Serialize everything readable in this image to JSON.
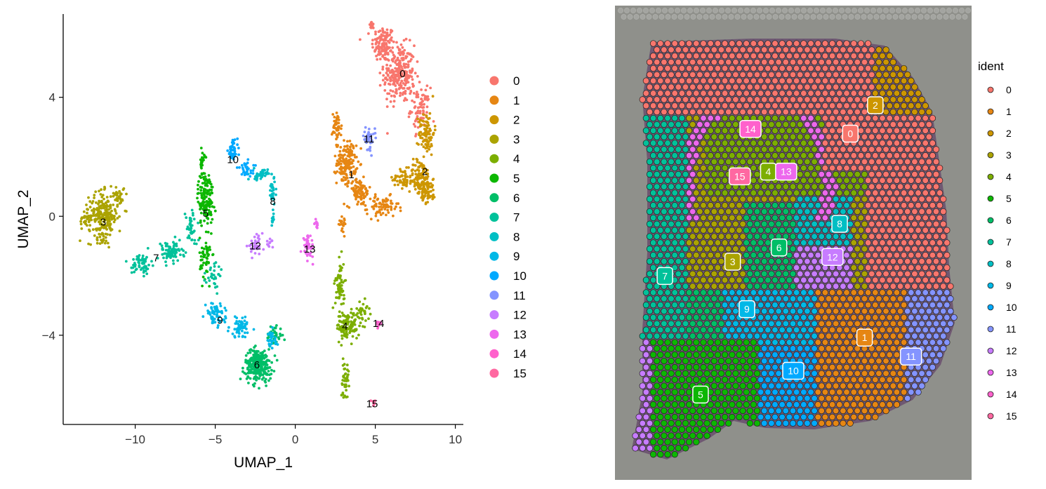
{
  "chart_data": [
    {
      "type": "scatter",
      "title": "",
      "xlabel": "UMAP_1",
      "ylabel": "UMAP_2",
      "xlim": [
        -14.5,
        10.5
      ],
      "ylim": [
        -7.0,
        6.8
      ],
      "x_ticks": [
        -10,
        -5,
        0,
        5,
        10
      ],
      "y_ticks": [
        -4,
        0,
        4
      ],
      "x_tick_labels": [
        "−10",
        "−5",
        "0",
        "5",
        "10"
      ],
      "y_tick_labels": [
        "−4",
        "0",
        "4"
      ],
      "grid": false,
      "legend_placement": "right",
      "legend_entries": [
        "0",
        "1",
        "2",
        "3",
        "4",
        "5",
        "6",
        "7",
        "8",
        "9",
        "10",
        "11",
        "12",
        "13",
        "14",
        "15"
      ],
      "series": [
        {
          "cluster": "0",
          "color": "#F8766D",
          "centroid": [
            6.5,
            4.8
          ],
          "label_pos": [
            6.7,
            4.8
          ]
        },
        {
          "cluster": "1",
          "color": "#E68613",
          "centroid": [
            3.4,
            1.6
          ],
          "label_pos": [
            3.5,
            1.4
          ]
        },
        {
          "cluster": "2",
          "color": "#CD9600",
          "centroid": [
            8.1,
            1.2
          ],
          "label_pos": [
            8.1,
            1.5
          ]
        },
        {
          "cluster": "3",
          "color": "#ABA300",
          "centroid": [
            -12.0,
            -0.2
          ],
          "label_pos": [
            -12.0,
            -0.2
          ]
        },
        {
          "cluster": "4",
          "color": "#7CAE00",
          "centroid": [
            3.2,
            -3.8
          ],
          "label_pos": [
            3.1,
            -3.7
          ]
        },
        {
          "cluster": "5",
          "color": "#0CB702",
          "centroid": [
            -5.6,
            0.2
          ],
          "label_pos": [
            -5.6,
            0.1
          ]
        },
        {
          "cluster": "6",
          "color": "#00BE67",
          "centroid": [
            -2.3,
            -4.9
          ],
          "label_pos": [
            -2.4,
            -5.0
          ]
        },
        {
          "cluster": "7",
          "color": "#00C19A",
          "centroid": [
            -8.8,
            -1.4
          ],
          "label_pos": [
            -8.7,
            -1.4
          ]
        },
        {
          "cluster": "8",
          "color": "#00BFC4",
          "centroid": [
            -1.5,
            0.5
          ],
          "label_pos": [
            -1.4,
            0.5
          ]
        },
        {
          "cluster": "9",
          "color": "#00B8E7",
          "centroid": [
            -4.6,
            -3.3
          ],
          "label_pos": [
            -4.7,
            -3.5
          ]
        },
        {
          "cluster": "10",
          "color": "#00A9FF",
          "centroid": [
            -3.8,
            2.0
          ],
          "label_pos": [
            -3.9,
            1.9
          ]
        },
        {
          "cluster": "11",
          "color": "#8494FF",
          "centroid": [
            4.6,
            2.6
          ],
          "label_pos": [
            4.6,
            2.6
          ]
        },
        {
          "cluster": "12",
          "color": "#C77CFF",
          "centroid": [
            -2.4,
            -1.0
          ],
          "label_pos": [
            -2.5,
            -1.0
          ]
        },
        {
          "cluster": "13",
          "color": "#ED68ED",
          "centroid": [
            0.9,
            -1.1
          ],
          "label_pos": [
            0.9,
            -1.1
          ]
        },
        {
          "cluster": "14",
          "color": "#FF61CC",
          "centroid": [
            5.1,
            -3.6
          ],
          "label_pos": [
            5.2,
            -3.6
          ]
        },
        {
          "cluster": "15",
          "color": "#FF68A1",
          "centroid": [
            4.8,
            -6.3
          ],
          "label_pos": [
            4.8,
            -6.3
          ]
        }
      ]
    },
    {
      "type": "scatter",
      "title": "",
      "legend_title": "ident",
      "legend_placement": "right",
      "legend_entries": [
        "0",
        "1",
        "2",
        "3",
        "4",
        "5",
        "6",
        "7",
        "8",
        "9",
        "10",
        "11",
        "12",
        "13",
        "14",
        "15"
      ],
      "spot_labels": [
        {
          "cluster": "0",
          "pos": [
            0.66,
            0.27
          ]
        },
        {
          "cluster": "1",
          "pos": [
            0.7,
            0.7
          ]
        },
        {
          "cluster": "2",
          "pos": [
            0.73,
            0.21
          ]
        },
        {
          "cluster": "3",
          "pos": [
            0.33,
            0.54
          ]
        },
        {
          "cluster": "4",
          "pos": [
            0.43,
            0.35
          ]
        },
        {
          "cluster": "5",
          "pos": [
            0.24,
            0.82
          ]
        },
        {
          "cluster": "6",
          "pos": [
            0.46,
            0.51
          ]
        },
        {
          "cluster": "7",
          "pos": [
            0.14,
            0.57
          ]
        },
        {
          "cluster": "8",
          "pos": [
            0.63,
            0.46
          ]
        },
        {
          "cluster": "9",
          "pos": [
            0.37,
            0.64
          ]
        },
        {
          "cluster": "10",
          "pos": [
            0.5,
            0.77
          ]
        },
        {
          "cluster": "11",
          "pos": [
            0.83,
            0.74
          ]
        },
        {
          "cluster": "12",
          "pos": [
            0.61,
            0.53
          ]
        },
        {
          "cluster": "13",
          "pos": [
            0.48,
            0.35
          ]
        },
        {
          "cluster": "14",
          "pos": [
            0.38,
            0.26
          ]
        },
        {
          "cluster": "15",
          "pos": [
            0.35,
            0.36
          ]
        }
      ]
    }
  ]
}
